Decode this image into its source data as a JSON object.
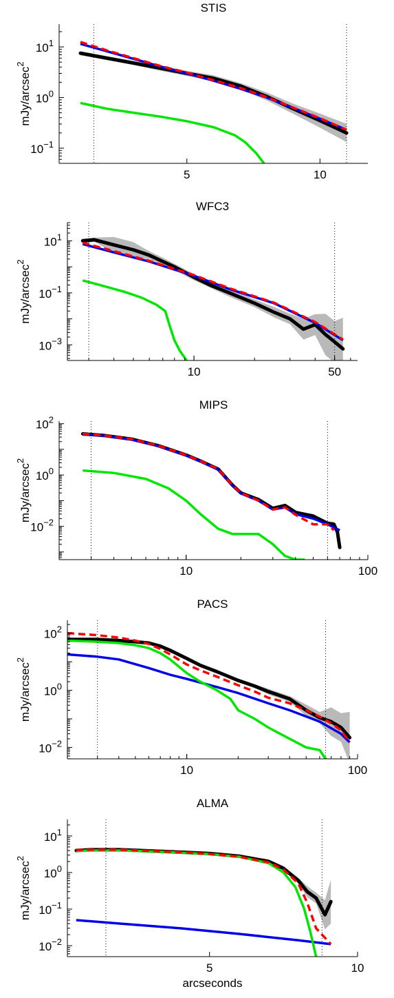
{
  "colors": {
    "data": "#000000",
    "band": "#b9b9b9",
    "blue": "#0000e6",
    "green": "#00e600",
    "red": "#ff0000",
    "guide": "#000000"
  },
  "chart_data": [
    {
      "type": "line",
      "title": "STIS",
      "ylabel_base": "mJy/arcsec",
      "ylabel_exp": "2",
      "xlabel": "",
      "xscale": "linear",
      "yscale": "log",
      "xlim": [
        0.2,
        11.8
      ],
      "ylim_exp": [
        -1.3,
        1.45
      ],
      "x_ticks": [
        {
          "v": 5,
          "label": "5"
        },
        {
          "v": 10,
          "label": "10"
        }
      ],
      "y_ticks": [
        {
          "e": -1,
          "label": "10",
          "sup": "−1"
        },
        {
          "e": 0,
          "label": "10",
          "sup": "0"
        },
        {
          "e": 1,
          "label": "10",
          "sup": "1"
        }
      ],
      "vlines": [
        1.5,
        11.0
      ],
      "band_hw": [
        0.04,
        0.04,
        0.05,
        0.05,
        0.06,
        0.08,
        0.1,
        0.14,
        0.18
      ],
      "series": [
        {
          "style": "data",
          "x": [
            1.0,
            2,
            3,
            4,
            5,
            6,
            7,
            8,
            9,
            10,
            11
          ],
          "y": [
            7.5,
            6.0,
            4.8,
            3.8,
            3.0,
            2.4,
            1.7,
            1.05,
            0.6,
            0.35,
            0.2
          ]
        },
        {
          "style": "blue",
          "x": [
            1.0,
            2,
            3,
            4,
            5,
            6,
            7,
            8,
            9,
            10,
            11
          ],
          "y": [
            11.5,
            8.2,
            5.8,
            4.1,
            3.0,
            2.15,
            1.5,
            1.0,
            0.62,
            0.38,
            0.23
          ]
        },
        {
          "style": "green",
          "x": [
            1.0,
            2,
            3,
            4,
            5,
            6,
            6.8,
            7.2,
            7.6,
            7.9
          ],
          "y": [
            0.78,
            0.6,
            0.5,
            0.42,
            0.34,
            0.26,
            0.18,
            0.13,
            0.08,
            0.05
          ]
        },
        {
          "style": "red",
          "x": [
            1.0,
            2,
            3,
            4,
            5,
            6,
            7,
            8,
            9,
            10,
            11
          ],
          "y": [
            12.5,
            8.5,
            6.0,
            4.2,
            3.1,
            2.2,
            1.55,
            1.02,
            0.63,
            0.39,
            0.23
          ]
        }
      ]
    },
    {
      "type": "line",
      "title": "WFC3",
      "ylabel_base": "mJy/arcsec",
      "ylabel_exp": "2",
      "xlabel": "",
      "xscale": "log",
      "yscale": "log",
      "xlim": [
        2.35,
        65
      ],
      "ylim_exp": [
        -3.6,
        1.7
      ],
      "x_ticks": [
        {
          "v": 10,
          "label": "10"
        },
        {
          "v": 50,
          "label": "50"
        }
      ],
      "y_ticks": [
        {
          "e": -3,
          "label": "10",
          "sup": "−3"
        },
        {
          "e": -1,
          "label": "10",
          "sup": "−1"
        },
        {
          "e": 1,
          "label": "10",
          "sup": "1"
        }
      ],
      "vlines": [
        3.0,
        50.0
      ],
      "band_hw": [
        0.08,
        0.3,
        0.15,
        0.12,
        0.1,
        0.15,
        0.2,
        0.4,
        0.8,
        1.2
      ],
      "series": [
        {
          "style": "data",
          "x": [
            2.8,
            3.2,
            4,
            5,
            6,
            7,
            8,
            10,
            12,
            15,
            20,
            25,
            30,
            35,
            40,
            45,
            50,
            55
          ],
          "y": [
            10,
            11,
            7,
            4.5,
            2.8,
            1.6,
            1.0,
            0.4,
            0.2,
            0.1,
            0.04,
            0.018,
            0.01,
            0.004,
            0.006,
            0.0025,
            0.0013,
            0.0007
          ]
        },
        {
          "style": "blue",
          "x": [
            2.8,
            4,
            6,
            10,
            15,
            25,
            40,
            55
          ],
          "y": [
            7.5,
            3.6,
            1.6,
            0.45,
            0.14,
            0.04,
            0.007,
            0.0015
          ]
        },
        {
          "style": "green",
          "x": [
            2.8,
            3.5,
            4.5,
            5.5,
            6.5,
            7.2,
            7.6,
            8.0,
            8.5,
            9.2
          ],
          "y": [
            0.3,
            0.19,
            0.11,
            0.065,
            0.035,
            0.02,
            0.005,
            0.0015,
            0.0006,
            0.00025
          ]
        },
        {
          "style": "red",
          "x": [
            2.8,
            4,
            6,
            10,
            15,
            25,
            40,
            55
          ],
          "y": [
            8.5,
            4.0,
            1.7,
            0.48,
            0.15,
            0.042,
            0.0075,
            0.0016
          ]
        }
      ]
    },
    {
      "type": "line",
      "title": "MIPS",
      "ylabel_base": "mJy/arcsec",
      "ylabel_exp": "2",
      "xlabel": "",
      "xscale": "log",
      "yscale": "log",
      "xlim": [
        2.0,
        100
      ],
      "ylim_exp": [
        -3.3,
        2.1
      ],
      "x_ticks": [
        {
          "v": 10,
          "label": "10"
        },
        {
          "v": 100,
          "label": "100"
        }
      ],
      "y_ticks": [
        {
          "e": -2,
          "label": "10",
          "sup": "−2"
        },
        {
          "e": 0,
          "label": "10",
          "sup": "0"
        },
        {
          "e": 2,
          "label": "10",
          "sup": "2"
        }
      ],
      "vlines": [
        3.0,
        60.0
      ],
      "band_hw": [
        0.02,
        0.02,
        0.02,
        0.02,
        0.03,
        0.04,
        0.05,
        0.08,
        0.1,
        0.15
      ],
      "series": [
        {
          "style": "data",
          "x": [
            2.7,
            3.5,
            5,
            7,
            10,
            12,
            15,
            18,
            20,
            25,
            30,
            35,
            40,
            50,
            60,
            65,
            68,
            70
          ],
          "y": [
            40,
            35,
            25,
            14,
            6,
            3.5,
            1.7,
            0.4,
            0.2,
            0.11,
            0.05,
            0.065,
            0.035,
            0.025,
            0.013,
            0.012,
            0.006,
            0.0015
          ]
        },
        {
          "style": "blue",
          "x": [
            2.7,
            3.5,
            5,
            7,
            10,
            12,
            15,
            18,
            20,
            25,
            30,
            35,
            40,
            50,
            60,
            70
          ],
          "y": [
            38,
            34,
            24,
            13.5,
            5.8,
            3.4,
            1.6,
            0.38,
            0.19,
            0.1,
            0.045,
            0.055,
            0.03,
            0.02,
            0.012,
            0.007
          ]
        },
        {
          "style": "green",
          "x": [
            2.7,
            4,
            6,
            8,
            10,
            12,
            15,
            18,
            20,
            25,
            30,
            35,
            40,
            45
          ],
          "y": [
            1.5,
            1.2,
            0.7,
            0.3,
            0.1,
            0.03,
            0.008,
            0.005,
            0.005,
            0.005,
            0.002,
            0.0007,
            0.0005,
            0.0005
          ]
        },
        {
          "style": "red",
          "x": [
            2.7,
            3.5,
            5,
            7,
            10,
            12,
            15,
            18,
            20,
            25,
            30,
            35,
            40,
            50,
            60,
            65
          ],
          "y": [
            40,
            35,
            25,
            14,
            6,
            3.5,
            1.7,
            0.4,
            0.2,
            0.1,
            0.045,
            0.055,
            0.028,
            0.012,
            0.012,
            0.007
          ]
        }
      ]
    },
    {
      "type": "line",
      "title": "PACS",
      "ylabel_base": "mJy/arcsec",
      "ylabel_exp": "2",
      "xlabel": "",
      "xscale": "log",
      "yscale": "log",
      "xlim": [
        2.0,
        100
      ],
      "ylim_exp": [
        -2.4,
        2.45
      ],
      "x_ticks": [
        {
          "v": 10,
          "label": "10"
        },
        {
          "v": 100,
          "label": "100"
        }
      ],
      "y_ticks": [
        {
          "e": -2,
          "label": "10",
          "sup": "−2"
        },
        {
          "e": 0,
          "label": "10",
          "sup": "0"
        },
        {
          "e": 2,
          "label": "10",
          "sup": "2"
        }
      ],
      "vlines": [
        3.0,
        65.0
      ],
      "band_hw": [
        0.03,
        0.03,
        0.03,
        0.04,
        0.05,
        0.06,
        0.1,
        0.2,
        0.5,
        0.9
      ],
      "series": [
        {
          "style": "data",
          "x": [
            2,
            3,
            4,
            5,
            6,
            7,
            8,
            10,
            12,
            15,
            20,
            25,
            30,
            40,
            50,
            60,
            70,
            80,
            90
          ],
          "y": [
            60,
            60,
            55,
            50,
            45,
            35,
            25,
            13,
            7.5,
            4.5,
            2.2,
            1.4,
            0.9,
            0.5,
            0.2,
            0.11,
            0.08,
            0.05,
            0.022
          ]
        },
        {
          "style": "blue",
          "x": [
            2,
            3,
            4,
            6,
            8,
            10,
            15,
            20,
            30,
            40,
            60,
            80,
            90
          ],
          "y": [
            18,
            15,
            12,
            6,
            3.5,
            2.5,
            1.3,
            0.8,
            0.35,
            0.2,
            0.08,
            0.03,
            0.015
          ]
        },
        {
          "style": "green",
          "x": [
            2,
            3,
            4,
            5,
            6,
            7,
            8,
            10,
            12,
            15,
            18,
            20,
            25,
            30,
            40,
            50,
            60,
            65,
            70
          ],
          "y": [
            55,
            50,
            45,
            38,
            30,
            20,
            12,
            4,
            2,
            1.0,
            0.5,
            0.2,
            0.1,
            0.05,
            0.02,
            0.01,
            0.008,
            0.004,
            0.002
          ]
        },
        {
          "style": "red",
          "x": [
            2,
            3,
            4,
            5,
            6,
            7,
            8,
            10,
            12,
            15,
            20,
            25,
            30,
            40,
            50,
            60,
            70,
            80,
            90
          ],
          "y": [
            100,
            85,
            70,
            55,
            42,
            28,
            18,
            8,
            5,
            3.0,
            1.5,
            0.9,
            0.55,
            0.35,
            0.2,
            0.12,
            0.07,
            0.04,
            0.015
          ]
        }
      ]
    },
    {
      "type": "line",
      "title": "ALMA",
      "ylabel_base": "mJy/arcsec",
      "ylabel_exp": "2",
      "xlabel": "arcseconds",
      "xscale": "linear",
      "yscale": "log",
      "xlim": [
        0.2,
        10
      ],
      "ylim_exp": [
        -2.3,
        1.45
      ],
      "x_ticks": [
        {
          "v": 5,
          "label": "5"
        },
        {
          "v": 10,
          "label": "10"
        }
      ],
      "y_ticks": [
        {
          "e": -2,
          "label": "10",
          "sup": "−2"
        },
        {
          "e": -1,
          "label": "10",
          "sup": "−1"
        },
        {
          "e": 0,
          "label": "10",
          "sup": "0"
        },
        {
          "e": 1,
          "label": "10",
          "sup": "1"
        }
      ],
      "vlines": [
        1.5,
        8.8
      ],
      "band_hw": [
        0.05,
        0.05,
        0.05,
        0.05,
        0.05,
        0.06,
        0.08,
        0.15,
        0.4,
        0.6
      ],
      "series": [
        {
          "style": "data",
          "x": [
            0.5,
            1,
            2,
            3,
            4,
            5,
            6,
            7,
            7.5,
            8,
            8.3,
            8.6,
            8.9,
            9.1
          ],
          "y": [
            4.0,
            4.2,
            4.2,
            3.9,
            3.6,
            3.3,
            2.8,
            2.0,
            1.3,
            0.6,
            0.3,
            0.2,
            0.07,
            0.16
          ]
        },
        {
          "style": "blue",
          "x": [
            0.5,
            2,
            4,
            6,
            8,
            9.1
          ],
          "y": [
            0.05,
            0.04,
            0.03,
            0.021,
            0.014,
            0.011
          ]
        },
        {
          "style": "green",
          "x": [
            0.5,
            1,
            2,
            3,
            4,
            5,
            6,
            7,
            7.5,
            7.9,
            8.2,
            8.4,
            8.6
          ],
          "y": [
            3.9,
            4.0,
            4.0,
            3.8,
            3.5,
            3.2,
            2.7,
            1.8,
            1.0,
            0.4,
            0.1,
            0.025,
            0.005
          ]
        },
        {
          "style": "red",
          "x": [
            0.5,
            1,
            2,
            3,
            4,
            5,
            6,
            7,
            7.5,
            8,
            8.3,
            8.6,
            9.1
          ],
          "y": [
            4.1,
            4.2,
            4.2,
            3.9,
            3.6,
            3.2,
            2.7,
            1.9,
            1.2,
            0.5,
            0.15,
            0.03,
            0.011
          ]
        }
      ]
    }
  ]
}
